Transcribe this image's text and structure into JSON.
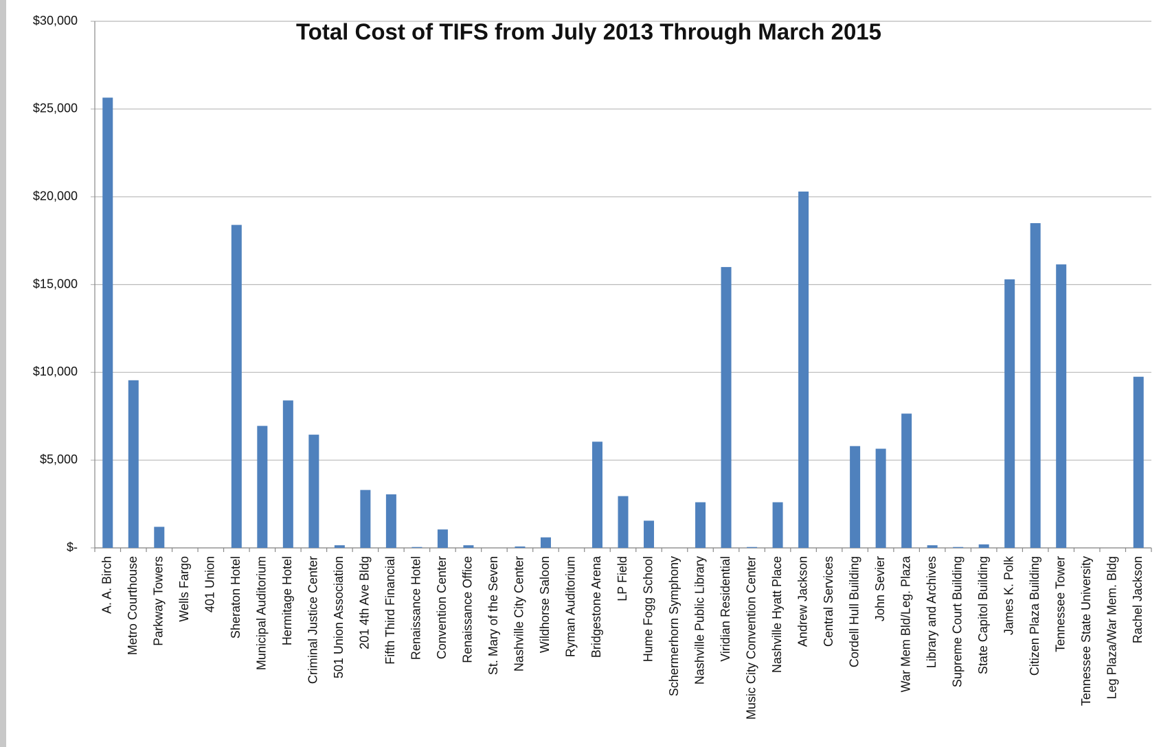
{
  "chart_data": {
    "type": "bar",
    "title": "Total Cost of TIFS from July 2013 Through March 2015",
    "categories": [
      "A. A. Birch",
      "Metro Courthouse",
      "Parkway Towers",
      "Wells Fargo",
      "401 Union",
      "Sheraton Hotel",
      "Municipal Auditorium",
      "Hermitage Hotel",
      "Criminal Justice Center",
      "501 Union Association",
      "201 4th Ave Bldg",
      "Fifth Third Financial",
      "Renaissance Hotel",
      "Convention Center",
      "Renaissance Office",
      "St. Mary of the Seven",
      "Nashville City Center",
      "Wildhorse Saloon",
      "Ryman Auditorium",
      "Bridgestone Arena",
      "LP Field",
      "Hume Fogg School",
      "Schermerhorn Symphony",
      "Nashville Public Library",
      "Viridian Residential",
      "Music City Convention Center",
      "Nashville Hyatt Place",
      "Andrew Jackson",
      "Central Services",
      "Cordell Hull Building",
      "John Sevier",
      "War Mem Bld/Leg. Plaza",
      "Library and Archives",
      "Supreme Court Building",
      "State Capitol Building",
      "James K. Polk",
      "Citizen Plaza Building",
      "Tennessee Tower",
      "Tennessee State University",
      "Leg Plaza/War Mem. Bldg",
      "Rachel Jackson"
    ],
    "values": [
      25650,
      9550,
      1200,
      0,
      0,
      18400,
      6950,
      8400,
      6450,
      150,
      3300,
      3050,
      50,
      1050,
      150,
      0,
      80,
      600,
      0,
      6050,
      2950,
      1550,
      0,
      2600,
      16000,
      50,
      2600,
      20300,
      0,
      5800,
      5650,
      7650,
      150,
      50,
      200,
      15300,
      18500,
      16150,
      0,
      0,
      9750
    ],
    "color": "#4f81bd",
    "ylim": [
      0,
      30000
    ],
    "yticks": [
      {
        "value": 0,
        "label": "$-"
      },
      {
        "value": 5000,
        "label": "$5,000"
      },
      {
        "value": 10000,
        "label": "$10,000"
      },
      {
        "value": 15000,
        "label": "$15,000"
      },
      {
        "value": 20000,
        "label": "$20,000"
      },
      {
        "value": 25000,
        "label": "$25,000"
      },
      {
        "value": 30000,
        "label": "$30,000"
      }
    ],
    "grid": true
  }
}
